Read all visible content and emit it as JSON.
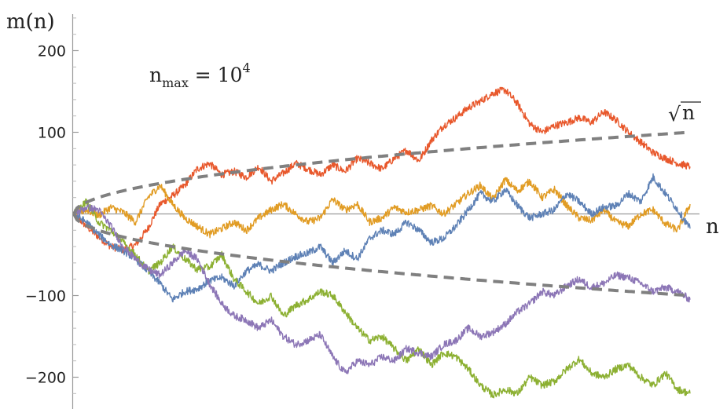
{
  "chart_data": {
    "type": "line",
    "title": "",
    "xlabel": "n",
    "ylabel": "m(n)",
    "xlim": [
      0,
      10000
    ],
    "ylim": [
      -235,
      240
    ],
    "grid": false,
    "legend": "none",
    "y_ticks": [
      -200,
      -100,
      100,
      200
    ],
    "y_tick_labels": [
      "−200",
      "−100",
      "100",
      "200"
    ],
    "annotation": {
      "base": "n",
      "sub": "max",
      "eq": " = 10",
      "sup": "4"
    },
    "envelope_label": {
      "radical": "√",
      "symbol": "n"
    },
    "envelope": {
      "x": [
        0,
        250,
        500,
        1000,
        1500,
        2000,
        2500,
        3000,
        3500,
        4000,
        4500,
        5000,
        5500,
        6000,
        6500,
        7000,
        7500,
        8000,
        8500,
        9000,
        9500,
        10000
      ],
      "upper": [
        0,
        15.8,
        22.4,
        31.6,
        38.7,
        44.7,
        50.0,
        54.8,
        59.2,
        63.2,
        67.1,
        70.7,
        74.2,
        77.5,
        80.6,
        83.7,
        86.6,
        89.4,
        92.2,
        94.9,
        97.5,
        100.0
      ],
      "lower": [
        0,
        -15.8,
        -22.4,
        -31.6,
        -38.7,
        -44.7,
        -50.0,
        -54.8,
        -59.2,
        -63.2,
        -67.1,
        -70.7,
        -74.2,
        -77.5,
        -80.6,
        -83.7,
        -86.6,
        -89.4,
        -92.2,
        -94.9,
        -97.5,
        -100.0
      ],
      "color": "#808080"
    },
    "series": [
      {
        "color": "#E8582C",
        "x": [
          0,
          200,
          400,
          600,
          800,
          1000,
          1200,
          1400,
          1600,
          1800,
          2000,
          2200,
          2400,
          2600,
          2800,
          3000,
          3200,
          3400,
          3600,
          3800,
          4000,
          4200,
          4400,
          4600,
          4800,
          5000,
          5200,
          5400,
          5600,
          5800,
          6000,
          6200,
          6400,
          6600,
          6800,
          7000,
          7200,
          7400,
          7600,
          7800,
          8000,
          8200,
          8400,
          8600,
          8800,
          9000,
          9200,
          9400,
          9600,
          9800,
          10000
        ],
        "values": [
          0,
          -15,
          -28,
          -40,
          -44,
          -38,
          -18,
          12,
          22,
          35,
          55,
          62,
          48,
          52,
          45,
          58,
          40,
          50,
          62,
          55,
          48,
          60,
          52,
          68,
          62,
          55,
          68,
          78,
          65,
          90,
          108,
          118,
          130,
          138,
          148,
          152,
          135,
          110,
          100,
          108,
          112,
          118,
          112,
          125,
          115,
          100,
          88,
          75,
          68,
          62,
          58
        ]
      },
      {
        "color": "#E19C24",
        "x": [
          0,
          200,
          400,
          600,
          800,
          1000,
          1200,
          1400,
          1600,
          1800,
          2000,
          2200,
          2400,
          2600,
          2800,
          3000,
          3200,
          3400,
          3600,
          3800,
          4000,
          4200,
          4400,
          4600,
          4800,
          5000,
          5200,
          5400,
          5600,
          5800,
          6000,
          6200,
          6400,
          6600,
          6800,
          7000,
          7200,
          7400,
          7600,
          7800,
          8000,
          8200,
          8400,
          8600,
          8800,
          9000,
          9200,
          9400,
          9600,
          9800,
          10000
        ],
        "values": [
          0,
          5,
          -2,
          8,
          2,
          -10,
          20,
          35,
          12,
          -5,
          -15,
          -25,
          -18,
          -10,
          -20,
          -5,
          5,
          12,
          0,
          -10,
          -5,
          18,
          5,
          12,
          -10,
          -5,
          8,
          2,
          5,
          10,
          0,
          12,
          25,
          35,
          18,
          42,
          28,
          40,
          20,
          30,
          10,
          -5,
          -8,
          5,
          -10,
          -15,
          0,
          5,
          -12,
          -20,
          12
        ]
      },
      {
        "color": "#5E81B5",
        "x": [
          0,
          200,
          400,
          600,
          800,
          1000,
          1200,
          1400,
          1600,
          1800,
          2000,
          2200,
          2400,
          2600,
          2800,
          3000,
          3200,
          3400,
          3600,
          3800,
          4000,
          4200,
          4400,
          4600,
          4800,
          5000,
          5200,
          5400,
          5600,
          5800,
          6000,
          6200,
          6400,
          6600,
          6800,
          7000,
          7200,
          7400,
          7600,
          7800,
          8000,
          8200,
          8400,
          8600,
          8800,
          9000,
          9200,
          9400,
          9600,
          9800,
          10000
        ],
        "values": [
          0,
          -10,
          -25,
          -38,
          -45,
          -55,
          -70,
          -85,
          -105,
          -95,
          -92,
          -82,
          -78,
          -88,
          -70,
          -62,
          -70,
          -60,
          -52,
          -48,
          -40,
          -60,
          -45,
          -55,
          -30,
          -20,
          -25,
          -10,
          -20,
          -35,
          -30,
          -15,
          5,
          25,
          15,
          30,
          10,
          -5,
          0,
          5,
          25,
          15,
          0,
          8,
          10,
          25,
          15,
          45,
          25,
          5,
          -18
        ]
      },
      {
        "color": "#8CB032",
        "x": [
          0,
          200,
          400,
          600,
          800,
          1000,
          1200,
          1400,
          1600,
          1800,
          2000,
          2200,
          2400,
          2600,
          2800,
          3000,
          3200,
          3400,
          3600,
          3800,
          4000,
          4200,
          4400,
          4600,
          4800,
          5000,
          5200,
          5400,
          5600,
          5800,
          6000,
          6200,
          6400,
          6600,
          6800,
          7000,
          7200,
          7400,
          7600,
          7800,
          8000,
          8200,
          8400,
          8600,
          8800,
          9000,
          9200,
          9400,
          9600,
          9800,
          10000
        ],
        "values": [
          0,
          15,
          -10,
          -20,
          -35,
          -50,
          -70,
          -60,
          -40,
          -55,
          -68,
          -65,
          -50,
          -80,
          -95,
          -110,
          -100,
          -125,
          -112,
          -105,
          -95,
          -100,
          -120,
          -140,
          -155,
          -150,
          -165,
          -180,
          -165,
          -185,
          -170,
          -175,
          -190,
          -210,
          -222,
          -215,
          -220,
          -200,
          -210,
          -205,
          -190,
          -178,
          -195,
          -200,
          -190,
          -185,
          -200,
          -210,
          -195,
          -215,
          -220
        ]
      },
      {
        "color": "#8C76B6",
        "x": [
          0,
          200,
          400,
          600,
          800,
          1000,
          1200,
          1400,
          1600,
          1800,
          2000,
          2200,
          2400,
          2600,
          2800,
          3000,
          3200,
          3400,
          3600,
          3800,
          4000,
          4200,
          4400,
          4600,
          4800,
          5000,
          5200,
          5400,
          5600,
          5800,
          6000,
          6200,
          6400,
          6600,
          6800,
          7000,
          7200,
          7400,
          7600,
          7800,
          8000,
          8200,
          8400,
          8600,
          8800,
          9000,
          9200,
          9400,
          9600,
          9800,
          10000
        ],
        "values": [
          0,
          8,
          5,
          -15,
          -40,
          -55,
          -68,
          -75,
          -60,
          -45,
          -55,
          -85,
          -110,
          -125,
          -130,
          -140,
          -130,
          -150,
          -160,
          -155,
          -148,
          -175,
          -195,
          -180,
          -185,
          -175,
          -180,
          -165,
          -170,
          -175,
          -160,
          -155,
          -140,
          -150,
          -145,
          -135,
          -120,
          -110,
          -95,
          -100,
          -88,
          -80,
          -90,
          -85,
          -75,
          -78,
          -85,
          -95,
          -90,
          -95,
          -105
        ]
      }
    ]
  }
}
